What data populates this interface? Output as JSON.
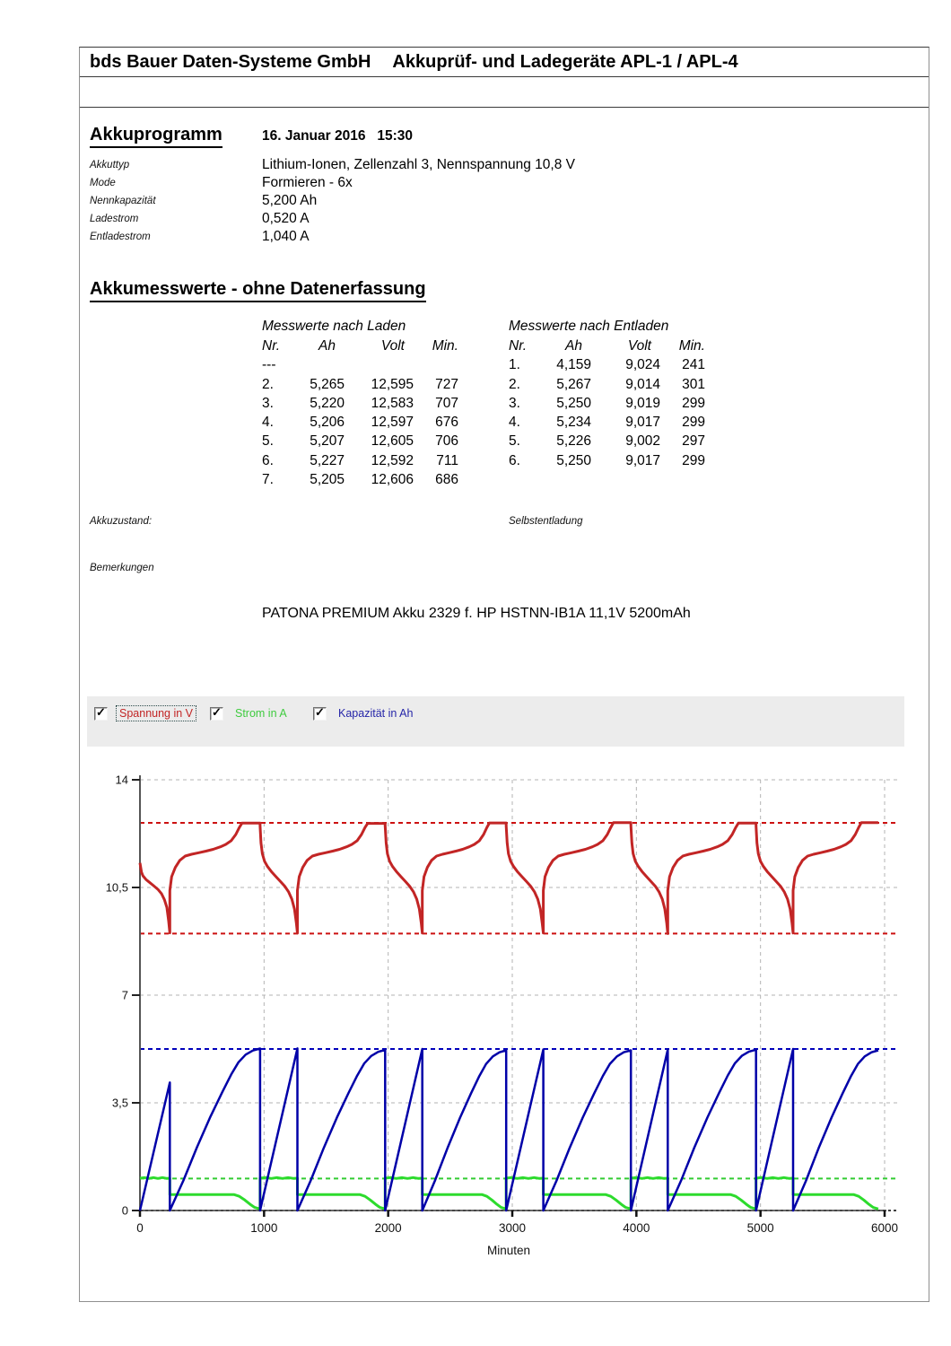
{
  "header": {
    "company": "bds Bauer Daten-Systeme GmbH",
    "product": "Akkuprüf- und Ladegeräte APL-1 / APL-4"
  },
  "program": {
    "title": "Akkuprogramm",
    "datetime": "16. Januar 2016   15:30",
    "fields": [
      {
        "label": "Akkuttyp",
        "value": "Lithium-Ionen, Zellenzahl 3, Nennspannung 10,8 V"
      },
      {
        "label": "Mode",
        "value": "Formieren - 6x"
      },
      {
        "label": "Nennkapazität",
        "value": "5,200 Ah"
      },
      {
        "label": "Ladestrom",
        "value": "0,520 A"
      },
      {
        "label": "Entladestrom",
        "value": "1,040 A"
      }
    ]
  },
  "measurements": {
    "title": "Akkumesswerte - ohne Datenerfassung",
    "laden": {
      "title": "Messwerte nach Laden",
      "columns": [
        "Nr.",
        "Ah",
        "Volt",
        "Min."
      ],
      "rows": [
        [
          "---",
          "",
          "",
          ""
        ],
        [
          "2.",
          "5,265",
          "12,595",
          "727"
        ],
        [
          "3.",
          "5,220",
          "12,583",
          "707"
        ],
        [
          "4.",
          "5,206",
          "12,597",
          "676"
        ],
        [
          "5.",
          "5,207",
          "12,605",
          "706"
        ],
        [
          "6.",
          "5,227",
          "12,592",
          "711"
        ],
        [
          "7.",
          "5,205",
          "12,606",
          "686"
        ]
      ]
    },
    "entladen": {
      "title": "Messwerte nach Entladen",
      "columns": [
        "Nr.",
        "Ah",
        "Volt",
        "Min."
      ],
      "rows": [
        [
          "1.",
          "4,159",
          "9,024",
          "241"
        ],
        [
          "2.",
          "5,267",
          "9,014",
          "301"
        ],
        [
          "3.",
          "5,250",
          "9,019",
          "299"
        ],
        [
          "4.",
          "5,234",
          "9,017",
          "299"
        ],
        [
          "5.",
          "5,226",
          "9,002",
          "297"
        ],
        [
          "6.",
          "5,250",
          "9,017",
          "299"
        ]
      ]
    }
  },
  "notes": {
    "akkuzustand": "Akkuzustand:",
    "selbstentladung": "Selbstentladung",
    "bemerkungen": "Bemerkungen",
    "product_note": "PATONA PREMIUM Akku 2329 f. HP HSTNN-IB1A 11,1V 5200mAh"
  },
  "legend": {
    "items": [
      {
        "label": "Spannung in V",
        "checked": true,
        "color": "#c22525",
        "focused": true
      },
      {
        "label": "Strom in A",
        "checked": true,
        "color": "#3ecb3e",
        "focused": false
      },
      {
        "label": "Kapazität in Ah",
        "checked": true,
        "color": "#2525a8",
        "focused": false
      }
    ]
  },
  "chart_data": {
    "type": "line",
    "xlabel": "Minuten",
    "xlim": [
      0,
      6000
    ],
    "ylim": [
      0,
      14
    ],
    "x_ticks": [
      0,
      1000,
      2000,
      3000,
      4000,
      5000,
      6000
    ],
    "y_ticks": [
      {
        "label": "14",
        "value": 14
      },
      {
        "label": "10,5",
        "value": 10.5
      },
      {
        "label": "7",
        "value": 7
      },
      {
        "label": "3,5",
        "value": 3.5
      },
      {
        "label": "0",
        "value": 0
      }
    ],
    "grid": "dashed-gray",
    "series_colors": {
      "voltage": "#c22525",
      "current": "#2ddb2d",
      "capacity": "#0000a8"
    },
    "reference_lines": [
      {
        "value": 12.6,
        "color": "#cc1111",
        "name": "charge-end-voltage"
      },
      {
        "value": 9.0,
        "color": "#cc1111",
        "name": "discharge-cutoff-voltage"
      },
      {
        "value": 5.25,
        "color": "#0000bb",
        "name": "max-capacity"
      },
      {
        "value": 1.04,
        "color": "#33cc33",
        "name": "discharge-current"
      },
      {
        "value": 0,
        "color": "#000000",
        "name": "zero-line"
      }
    ],
    "levels": {
      "discharge_current_A": 1.04,
      "charge_current_A": 0.52,
      "charge_plateau_V": 12.6,
      "discharge_cutoff_V": 9.0
    },
    "cycles": [
      {
        "discharge_min": 241,
        "discharge_ah": 4.159,
        "discharge_v_end": 9.024,
        "charge_min": 727,
        "charge_ah": 5.265,
        "charge_v_end": 12.595
      },
      {
        "discharge_min": 301,
        "discharge_ah": 5.267,
        "discharge_v_end": 9.014,
        "charge_min": 707,
        "charge_ah": 5.22,
        "charge_v_end": 12.583
      },
      {
        "discharge_min": 299,
        "discharge_ah": 5.25,
        "discharge_v_end": 9.019,
        "charge_min": 676,
        "charge_ah": 5.206,
        "charge_v_end": 12.597
      },
      {
        "discharge_min": 299,
        "discharge_ah": 5.234,
        "discharge_v_end": 9.017,
        "charge_min": 706,
        "charge_ah": 5.207,
        "charge_v_end": 12.605
      },
      {
        "discharge_min": 297,
        "discharge_ah": 5.226,
        "discharge_v_end": 9.002,
        "charge_min": 711,
        "charge_ah": 5.227,
        "charge_v_end": 12.592
      },
      {
        "discharge_min": 299,
        "discharge_ah": 5.25,
        "discharge_v_end": 9.017,
        "charge_min": 686,
        "charge_ah": 5.205,
        "charge_v_end": 12.606
      }
    ]
  }
}
